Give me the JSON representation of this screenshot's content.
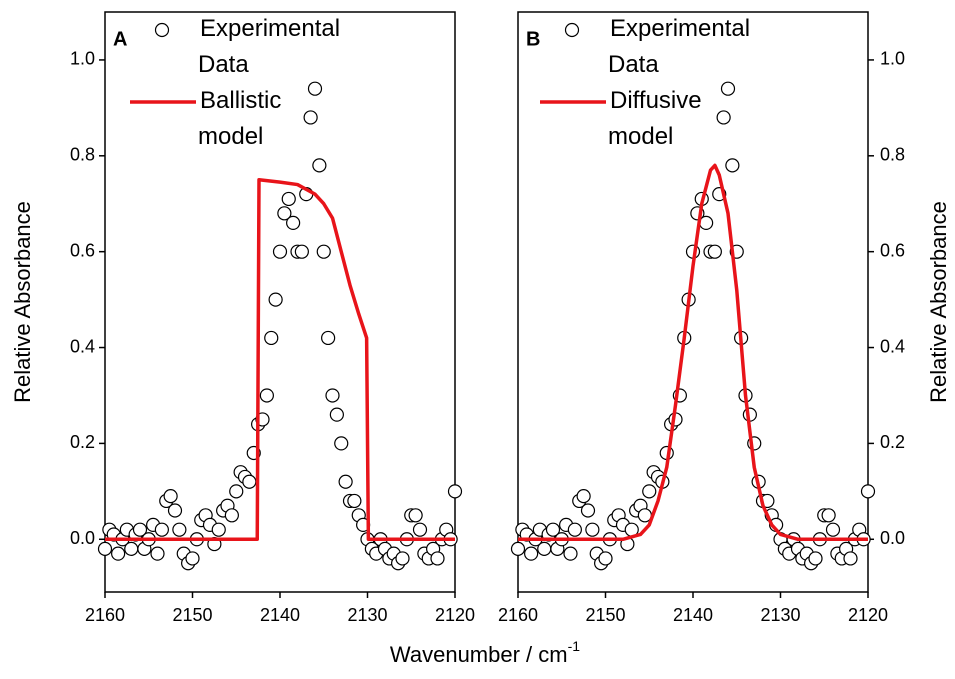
{
  "chart_data": [
    {
      "type": "line",
      "label": "A",
      "ylabel": "Relative Absorbance",
      "xlabel": "Wavenumber / cm",
      "xlabel_superscript": "-1",
      "yaxis_side": "left",
      "xlim": [
        2160,
        2120
      ],
      "ylim": [
        -0.11,
        1.1
      ],
      "xticks": [
        2160,
        2150,
        2140,
        2130,
        2120
      ],
      "yticks": [
        {
          "value": 0,
          "label": "0.0"
        },
        0.2,
        0.4,
        0.6,
        0.8,
        {
          "value": 1,
          "label": "1.0"
        }
      ],
      "series": [
        {
          "name": "Experimental Data",
          "marker": "circle",
          "color": "#000000",
          "x": [
            2160,
            2159.5,
            2159,
            2158.5,
            2158,
            2157.5,
            2157,
            2156.5,
            2156,
            2155.5,
            2155,
            2154.5,
            2154,
            2153.5,
            2153,
            2152.5,
            2152,
            2151.5,
            2151,
            2150.5,
            2150,
            2149.5,
            2149,
            2148.5,
            2148,
            2147.5,
            2147,
            2146.5,
            2146,
            2145.5,
            2145,
            2144.5,
            2144,
            2143.5,
            2143,
            2142.5,
            2142,
            2141.5,
            2141,
            2140.5,
            2140,
            2139.5,
            2139,
            2138.5,
            2138,
            2137.5,
            2137,
            2136.5,
            2136,
            2135.5,
            2135,
            2134.5,
            2134,
            2133.5,
            2133,
            2132.5,
            2132,
            2131.5,
            2131,
            2130.5,
            2130,
            2129.5,
            2129,
            2128.5,
            2128,
            2127.5,
            2127,
            2126.5,
            2126,
            2125.5,
            2125,
            2124.5,
            2124,
            2123.5,
            2123,
            2122.5,
            2122,
            2121.5,
            2121,
            2120.5,
            2120
          ],
          "values": [
            -0.02,
            0.02,
            0.01,
            -0.03,
            0.0,
            0.02,
            -0.02,
            0.01,
            0.02,
            -0.02,
            0.0,
            0.03,
            -0.03,
            0.02,
            0.08,
            0.09,
            0.06,
            0.02,
            -0.03,
            -0.05,
            -0.04,
            0.0,
            0.04,
            0.05,
            0.03,
            -0.01,
            0.02,
            0.06,
            0.07,
            0.05,
            0.1,
            0.14,
            0.13,
            0.12,
            0.18,
            0.24,
            0.25,
            0.3,
            0.42,
            0.5,
            0.6,
            0.68,
            0.71,
            0.66,
            0.6,
            0.6,
            0.72,
            0.88,
            0.94,
            0.78,
            0.6,
            0.42,
            0.3,
            0.26,
            0.2,
            0.12,
            0.08,
            0.08,
            0.05,
            0.03,
            0.0,
            -0.02,
            -0.03,
            0.0,
            -0.02,
            -0.04,
            -0.03,
            -0.05,
            -0.04,
            0.0,
            0.05,
            0.05,
            0.02,
            -0.03,
            -0.04,
            -0.02,
            -0.04,
            0.0,
            0.02,
            0.0,
            0.1
          ]
        },
        {
          "name": "Ballistic model",
          "marker": "none",
          "color": "#e8141a",
          "x": [
            2160,
            2142.6,
            2142.4,
            2140,
            2138,
            2136,
            2135,
            2134,
            2133,
            2132,
            2131,
            2130.1,
            2129.9,
            2120
          ],
          "values": [
            0,
            0,
            0.75,
            0.745,
            0.74,
            0.72,
            0.7,
            0.67,
            0.6,
            0.53,
            0.47,
            0.42,
            0,
            0
          ]
        }
      ]
    },
    {
      "type": "line",
      "label": "B",
      "ylabel": "Relative Absorbance",
      "yaxis_side": "right",
      "xlim": [
        2160,
        2120
      ],
      "ylim": [
        -0.11,
        1.1
      ],
      "xticks": [
        2160,
        2150,
        2140,
        2130,
        2120
      ],
      "yticks": [
        {
          "value": 0,
          "label": "0.0"
        },
        0.2,
        0.4,
        0.6,
        0.8,
        {
          "value": 1,
          "label": "1.0"
        }
      ],
      "series": [
        {
          "name": "Experimental Data",
          "marker": "circle",
          "color": "#000000",
          "x": [
            2160,
            2159.5,
            2159,
            2158.5,
            2158,
            2157.5,
            2157,
            2156.5,
            2156,
            2155.5,
            2155,
            2154.5,
            2154,
            2153.5,
            2153,
            2152.5,
            2152,
            2151.5,
            2151,
            2150.5,
            2150,
            2149.5,
            2149,
            2148.5,
            2148,
            2147.5,
            2147,
            2146.5,
            2146,
            2145.5,
            2145,
            2144.5,
            2144,
            2143.5,
            2143,
            2142.5,
            2142,
            2141.5,
            2141,
            2140.5,
            2140,
            2139.5,
            2139,
            2138.5,
            2138,
            2137.5,
            2137,
            2136.5,
            2136,
            2135.5,
            2135,
            2134.5,
            2134,
            2133.5,
            2133,
            2132.5,
            2132,
            2131.5,
            2131,
            2130.5,
            2130,
            2129.5,
            2129,
            2128.5,
            2128,
            2127.5,
            2127,
            2126.5,
            2126,
            2125.5,
            2125,
            2124.5,
            2124,
            2123.5,
            2123,
            2122.5,
            2122,
            2121.5,
            2121,
            2120.5,
            2120
          ],
          "values": [
            -0.02,
            0.02,
            0.01,
            -0.03,
            0.0,
            0.02,
            -0.02,
            0.01,
            0.02,
            -0.02,
            0.0,
            0.03,
            -0.03,
            0.02,
            0.08,
            0.09,
            0.06,
            0.02,
            -0.03,
            -0.05,
            -0.04,
            0.0,
            0.04,
            0.05,
            0.03,
            -0.01,
            0.02,
            0.06,
            0.07,
            0.05,
            0.1,
            0.14,
            0.13,
            0.12,
            0.18,
            0.24,
            0.25,
            0.3,
            0.42,
            0.5,
            0.6,
            0.68,
            0.71,
            0.66,
            0.6,
            0.6,
            0.72,
            0.88,
            0.94,
            0.78,
            0.6,
            0.42,
            0.3,
            0.26,
            0.2,
            0.12,
            0.08,
            0.08,
            0.05,
            0.03,
            0.0,
            -0.02,
            -0.03,
            0.0,
            -0.02,
            -0.04,
            -0.03,
            -0.05,
            -0.04,
            0.0,
            0.05,
            0.05,
            0.02,
            -0.03,
            -0.04,
            -0.02,
            -0.04,
            0.0,
            0.02,
            0.0,
            0.1
          ]
        },
        {
          "name": "Diffusive model",
          "marker": "none",
          "color": "#e8141a",
          "x": [
            2160,
            2148,
            2146,
            2145,
            2144,
            2143,
            2142,
            2141,
            2140,
            2139,
            2138,
            2137.5,
            2137,
            2136,
            2135,
            2134,
            2133,
            2132,
            2131,
            2130,
            2128,
            2120
          ],
          "values": [
            0,
            0,
            0.01,
            0.03,
            0.08,
            0.15,
            0.28,
            0.42,
            0.57,
            0.7,
            0.77,
            0.78,
            0.76,
            0.68,
            0.52,
            0.3,
            0.15,
            0.07,
            0.03,
            0.01,
            0,
            0
          ]
        }
      ]
    }
  ]
}
